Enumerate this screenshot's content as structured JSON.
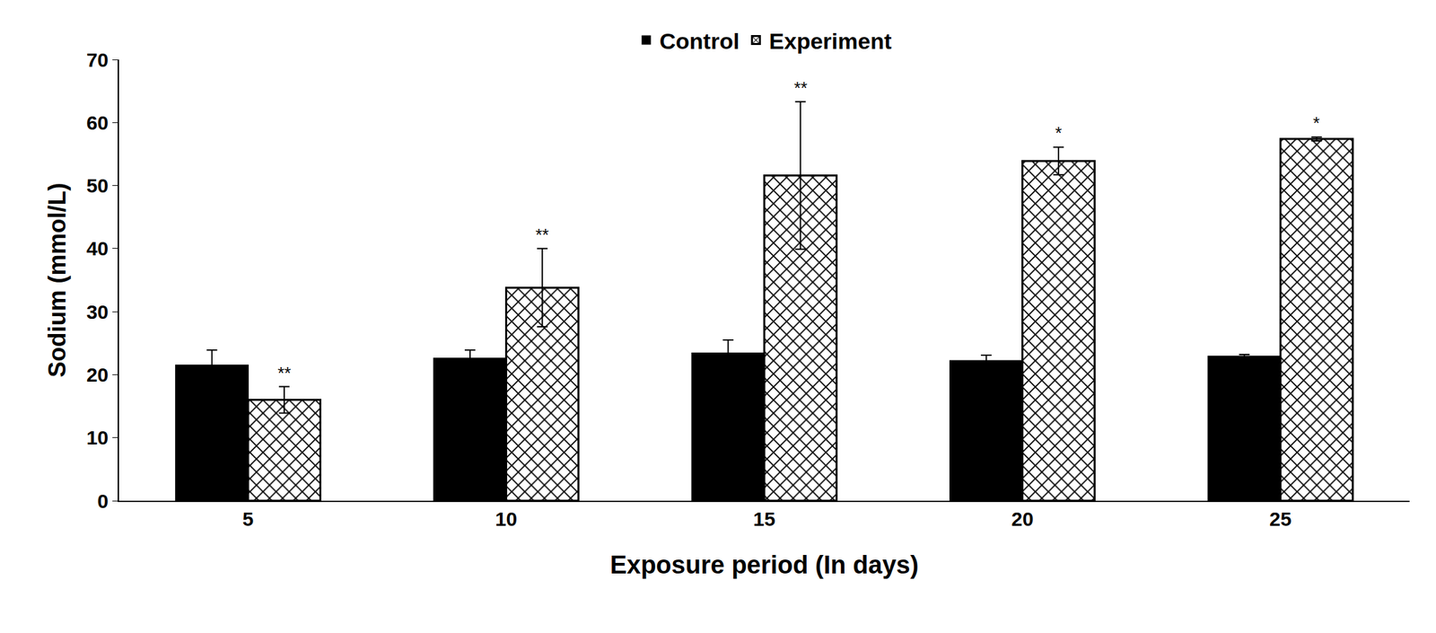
{
  "chart_data": {
    "type": "bar",
    "x_label": "Exposure period (In days)",
    "y_label": "Sodium (mmol/L)",
    "categories": [
      "5",
      "10",
      "15",
      "20",
      "25"
    ],
    "series": [
      {
        "name": "Control",
        "color": "#000000",
        "marker": "solid",
        "values": [
          21.5,
          22.6,
          23.4,
          22.2,
          22.9
        ],
        "errors": [
          2.4,
          1.3,
          2.1,
          0.9,
          0.3
        ]
      },
      {
        "name": "Experiment",
        "color": "#000000",
        "marker": "crosshatch",
        "values": [
          16.0,
          33.8,
          51.6,
          53.9,
          57.4
        ],
        "errors": [
          2.1,
          6.2,
          11.7,
          2.2,
          0.3
        ],
        "significance": [
          "**",
          "**",
          "**",
          "*",
          "*"
        ]
      }
    ],
    "ylim": [
      0,
      70
    ],
    "yticks": [
      0,
      10,
      20,
      30,
      40,
      50,
      60,
      70
    ],
    "grid": false,
    "legend": "top"
  }
}
